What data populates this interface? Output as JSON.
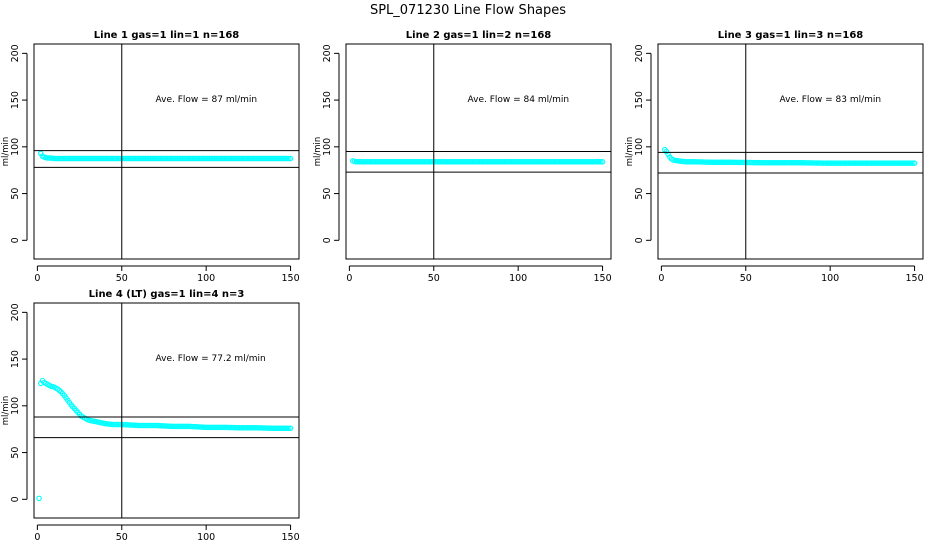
{
  "figure": {
    "title": "SPL_071230  Line Flow Shapes"
  },
  "colors": {
    "points": "#00ffff",
    "lines": "#000000"
  },
  "chart_data": [
    {
      "type": "scatter",
      "title": "Line 1 gas=1 lin=1 n=168",
      "xlabel": "",
      "ylabel": "ml/min",
      "xlim": [
        -2,
        155
      ],
      "ylim": [
        -20,
        210
      ],
      "xticks": [
        "0",
        "50",
        "100",
        "150"
      ],
      "yticks": [
        "0",
        "50",
        "100",
        "150",
        "200"
      ],
      "annotation": "Ave. Flow =  87  ml/min",
      "hlines": [
        96,
        78
      ],
      "vline": 50,
      "series": [
        {
          "x": [
            2,
            3,
            4,
            5,
            6,
            8,
            10,
            20,
            40,
            60,
            80,
            100,
            120,
            140,
            150
          ],
          "y": [
            93,
            90,
            89,
            88.5,
            88,
            88,
            87.5,
            87.5,
            87.5,
            87.5,
            87.5,
            87.5,
            87.5,
            87.5,
            87.5
          ]
        }
      ]
    },
    {
      "type": "scatter",
      "title": "Line 2 gas=1 lin=2 n=168",
      "xlabel": "",
      "ylabel": "ml/min",
      "xlim": [
        -2,
        155
      ],
      "ylim": [
        -20,
        210
      ],
      "xticks": [
        "0",
        "50",
        "100",
        "150"
      ],
      "yticks": [
        "0",
        "50",
        "100",
        "150",
        "200"
      ],
      "annotation": "Ave. Flow =  84  ml/min",
      "hlines": [
        95,
        73
      ],
      "vline": 50,
      "series": [
        {
          "x": [
            2,
            3,
            4,
            6,
            10,
            20,
            40,
            60,
            80,
            100,
            120,
            140,
            150
          ],
          "y": [
            85,
            84.5,
            84,
            84,
            84,
            84,
            84,
            84,
            84,
            84,
            84,
            84,
            84
          ]
        }
      ]
    },
    {
      "type": "scatter",
      "title": "Line 3 gas=1 lin=3 n=168",
      "xlabel": "",
      "ylabel": "ml/min",
      "xlim": [
        -2,
        155
      ],
      "ylim": [
        -20,
        210
      ],
      "xticks": [
        "0",
        "50",
        "100",
        "150"
      ],
      "yticks": [
        "0",
        "50",
        "100",
        "150",
        "200"
      ],
      "annotation": "Ave. Flow =  83  ml/min",
      "hlines": [
        94,
        72
      ],
      "vline": 50,
      "series": [
        {
          "x": [
            2,
            3,
            4,
            5,
            6,
            7,
            8,
            10,
            12,
            15,
            20,
            30,
            40,
            60,
            80,
            100,
            120,
            140,
            150
          ],
          "y": [
            97,
            95,
            92,
            89,
            87,
            86,
            85.5,
            85,
            84.5,
            84,
            84,
            83.5,
            83.5,
            83,
            83,
            82.5,
            82.5,
            82.5,
            82.5
          ]
        }
      ]
    },
    {
      "type": "scatter",
      "title": "Line 4 (LT) gas=1 lin=4 n=3",
      "xlabel": "",
      "ylabel": "ml/min",
      "xlim": [
        -2,
        155
      ],
      "ylim": [
        -20,
        210
      ],
      "xticks": [
        "0",
        "50",
        "100",
        "150"
      ],
      "yticks": [
        "0",
        "50",
        "100",
        "150",
        "200"
      ],
      "annotation": "Ave. Flow =  77.2  ml/min",
      "hlines": [
        88,
        66
      ],
      "vline": 50,
      "series": [
        {
          "x": [
            1,
            2,
            3,
            4,
            6,
            8,
            10,
            12,
            14,
            16,
            18,
            20,
            22,
            24,
            26,
            28,
            30,
            32,
            35,
            40,
            45,
            50,
            60,
            70,
            80,
            90,
            100,
            110,
            120,
            130,
            140,
            150
          ],
          "y": [
            1,
            124,
            127,
            125,
            123,
            121,
            120,
            118,
            115,
            111,
            106,
            101,
            97,
            93,
            89,
            87,
            85,
            84,
            83,
            81,
            80,
            80,
            79,
            79,
            78,
            78,
            77,
            77,
            76.5,
            76.5,
            76,
            76
          ]
        }
      ]
    }
  ]
}
